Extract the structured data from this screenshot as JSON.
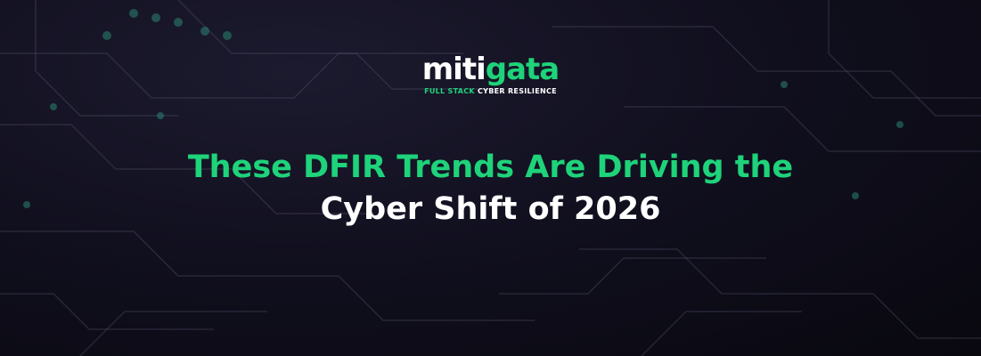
{
  "logo": {
    "name_part1": "miti",
    "name_part2": "gata",
    "tagline_highlight": "FULL STACK",
    "tagline_rest": "CYBER RESILIENCE"
  },
  "title": {
    "line1": "These DFIR Trends Are Driving the",
    "line2": "Cyber Shift of 2026"
  }
}
